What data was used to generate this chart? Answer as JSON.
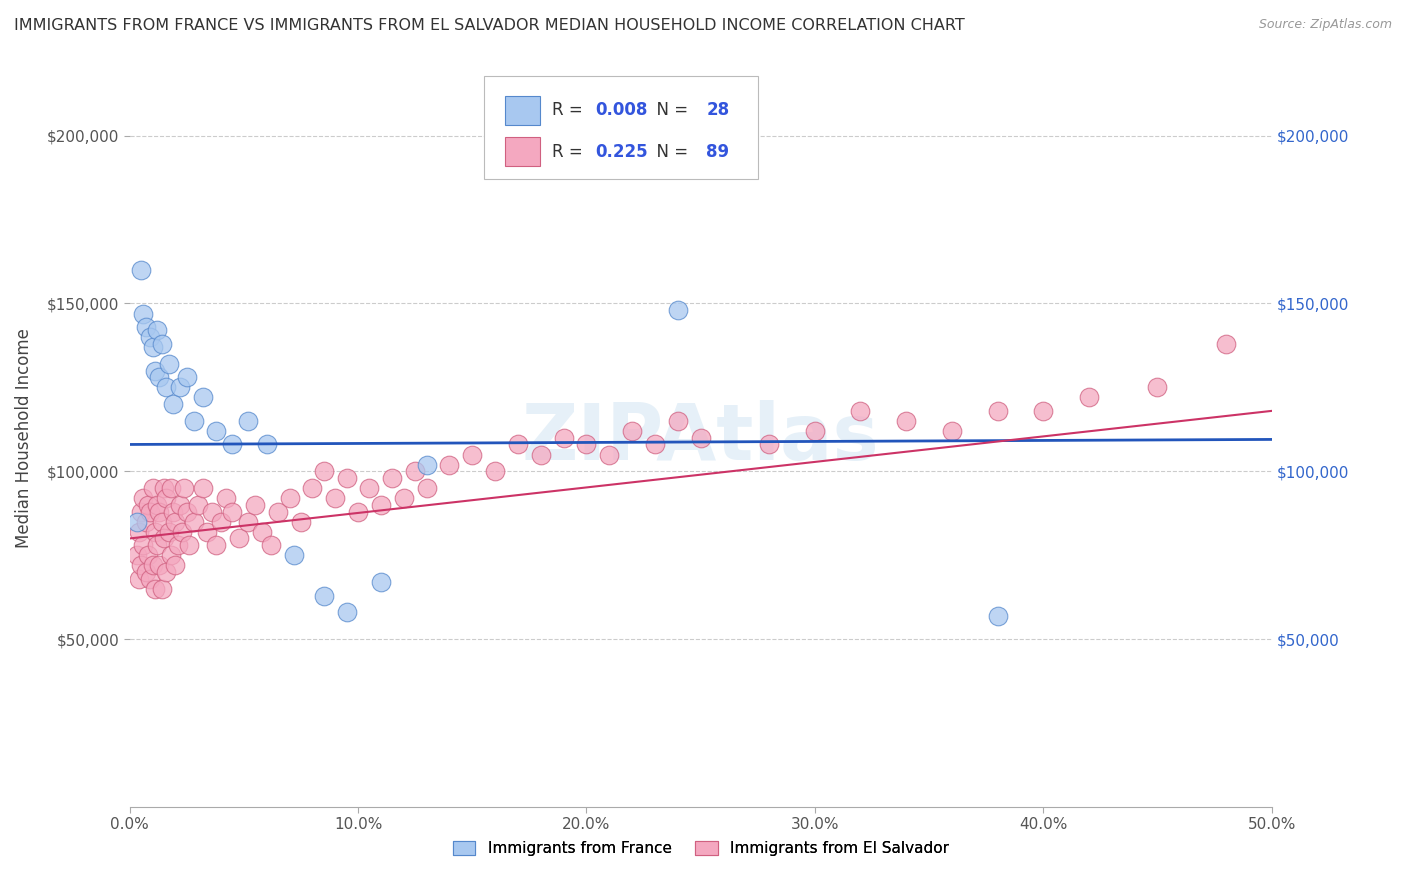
{
  "title": "IMMIGRANTS FROM FRANCE VS IMMIGRANTS FROM EL SALVADOR MEDIAN HOUSEHOLD INCOME CORRELATION CHART",
  "source": "Source: ZipAtlas.com",
  "ylabel": "Median Household Income",
  "xlim": [
    0.0,
    0.5
  ],
  "ylim": [
    0,
    220000
  ],
  "xticks": [
    0.0,
    0.1,
    0.2,
    0.3,
    0.4,
    0.5
  ],
  "xticklabels": [
    "0.0%",
    "10.0%",
    "20.0%",
    "30.0%",
    "40.0%",
    "50.0%"
  ],
  "yticks": [
    50000,
    100000,
    150000,
    200000
  ],
  "yticklabels": [
    "$50,000",
    "$100,000",
    "$150,000",
    "$200,000"
  ],
  "watermark": "ZIPAtlas",
  "france_color": "#a8c8f0",
  "france_edge": "#5588cc",
  "salvador_color": "#f4a8c0",
  "salvador_edge": "#d06080",
  "france_line_color": "#2255bb",
  "salvador_line_color": "#cc3366",
  "R_france": 0.008,
  "N_france": 28,
  "R_salvador": 0.225,
  "N_salvador": 89,
  "france_line_y0": 108000,
  "france_line_y1": 109500,
  "salvador_line_y0": 80000,
  "salvador_line_y1": 118000,
  "france_x": [
    0.003,
    0.005,
    0.006,
    0.007,
    0.009,
    0.01,
    0.011,
    0.012,
    0.013,
    0.014,
    0.016,
    0.017,
    0.019,
    0.022,
    0.025,
    0.028,
    0.032,
    0.038,
    0.045,
    0.052,
    0.06,
    0.072,
    0.085,
    0.095,
    0.11,
    0.13,
    0.24,
    0.38
  ],
  "france_y": [
    85000,
    160000,
    147000,
    143000,
    140000,
    137000,
    130000,
    142000,
    128000,
    138000,
    125000,
    132000,
    120000,
    125000,
    128000,
    115000,
    122000,
    112000,
    108000,
    115000,
    108000,
    75000,
    63000,
    58000,
    67000,
    102000,
    148000,
    57000
  ],
  "salvador_x": [
    0.003,
    0.004,
    0.004,
    0.005,
    0.005,
    0.006,
    0.006,
    0.007,
    0.007,
    0.008,
    0.008,
    0.009,
    0.009,
    0.01,
    0.01,
    0.011,
    0.011,
    0.012,
    0.012,
    0.013,
    0.013,
    0.014,
    0.014,
    0.015,
    0.015,
    0.016,
    0.016,
    0.017,
    0.018,
    0.018,
    0.019,
    0.02,
    0.02,
    0.021,
    0.022,
    0.023,
    0.024,
    0.025,
    0.026,
    0.028,
    0.03,
    0.032,
    0.034,
    0.036,
    0.038,
    0.04,
    0.042,
    0.045,
    0.048,
    0.052,
    0.055,
    0.058,
    0.062,
    0.065,
    0.07,
    0.075,
    0.08,
    0.085,
    0.09,
    0.095,
    0.1,
    0.105,
    0.11,
    0.115,
    0.12,
    0.125,
    0.13,
    0.14,
    0.15,
    0.16,
    0.17,
    0.18,
    0.19,
    0.2,
    0.21,
    0.22,
    0.23,
    0.24,
    0.25,
    0.28,
    0.3,
    0.32,
    0.34,
    0.36,
    0.38,
    0.4,
    0.42,
    0.45,
    0.48
  ],
  "salvador_y": [
    75000,
    82000,
    68000,
    88000,
    72000,
    92000,
    78000,
    85000,
    70000,
    90000,
    75000,
    88000,
    68000,
    95000,
    72000,
    82000,
    65000,
    90000,
    78000,
    88000,
    72000,
    85000,
    65000,
    95000,
    80000,
    92000,
    70000,
    82000,
    95000,
    75000,
    88000,
    72000,
    85000,
    78000,
    90000,
    82000,
    95000,
    88000,
    78000,
    85000,
    90000,
    95000,
    82000,
    88000,
    78000,
    85000,
    92000,
    88000,
    80000,
    85000,
    90000,
    82000,
    78000,
    88000,
    92000,
    85000,
    95000,
    100000,
    92000,
    98000,
    88000,
    95000,
    90000,
    98000,
    92000,
    100000,
    95000,
    102000,
    105000,
    100000,
    108000,
    105000,
    110000,
    108000,
    105000,
    112000,
    108000,
    115000,
    110000,
    108000,
    112000,
    118000,
    115000,
    112000,
    118000,
    118000,
    122000,
    125000,
    138000
  ]
}
